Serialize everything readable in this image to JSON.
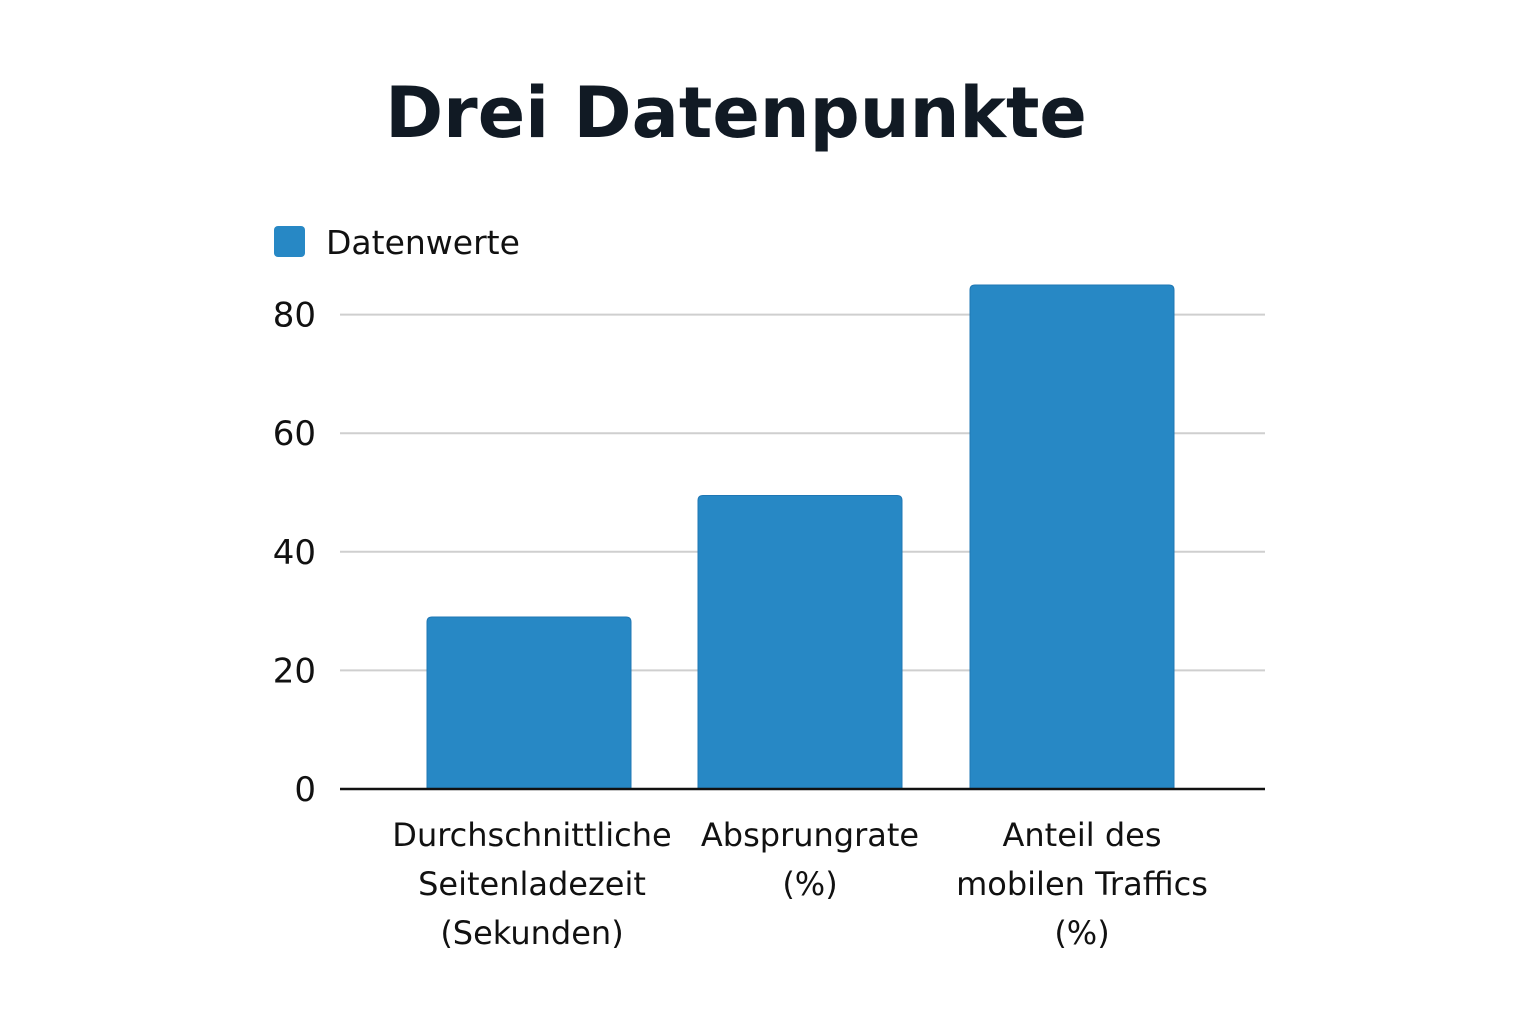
{
  "chart_data": {
    "type": "bar",
    "title": "Drei Datenpunkte",
    "categories": [
      [
        "Durchschnittliche",
        "Seitenladezeit",
        "(Sekunden)"
      ],
      [
        "Absprungrate",
        "(%)"
      ],
      [
        "Anteil des",
        "mobilen Traffics",
        "(%)"
      ]
    ],
    "series": [
      {
        "name": "Datenwerte",
        "values": [
          29,
          49.5,
          85
        ]
      }
    ],
    "yticks": [
      "0",
      "20",
      "40",
      "60",
      "80"
    ],
    "ylim": [
      0,
      87
    ],
    "grid": true,
    "legend_position": "top-left",
    "colors": {
      "bar": "#2788c5",
      "bar_stroke": "#1f77b4",
      "grid": "#cfcfcf",
      "axis": "#111111"
    }
  }
}
